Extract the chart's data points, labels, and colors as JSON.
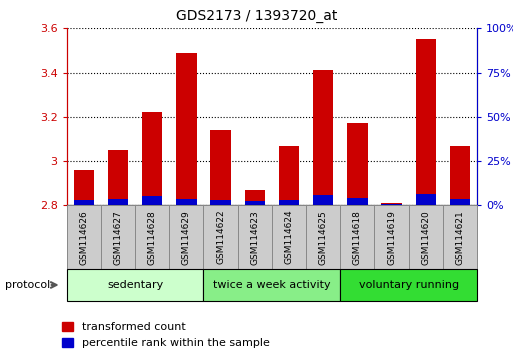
{
  "title": "GDS2173 / 1393720_at",
  "categories": [
    "GSM114626",
    "GSM114627",
    "GSM114628",
    "GSM114629",
    "GSM114622",
    "GSM114623",
    "GSM114624",
    "GSM114625",
    "GSM114618",
    "GSM114619",
    "GSM114620",
    "GSM114621"
  ],
  "red_values": [
    2.96,
    3.05,
    3.22,
    3.49,
    3.14,
    2.87,
    3.07,
    3.41,
    3.17,
    2.81,
    3.55,
    3.07
  ],
  "blue_values": [
    0.025,
    0.03,
    0.04,
    0.03,
    0.025,
    0.018,
    0.022,
    0.045,
    0.035,
    0.008,
    0.05,
    0.03
  ],
  "y_min": 2.8,
  "y_max": 3.6,
  "y_ticks": [
    2.8,
    3.0,
    3.2,
    3.4,
    3.6
  ],
  "right_y_ticks_pct": [
    0,
    25,
    50,
    75,
    100
  ],
  "right_y_labels": [
    "0%",
    "25%",
    "50%",
    "75%",
    "100%"
  ],
  "groups": [
    {
      "label": "sedentary",
      "indices": [
        0,
        1,
        2,
        3
      ],
      "color": "#ccffcc"
    },
    {
      "label": "twice a week activity",
      "indices": [
        4,
        5,
        6,
        7
      ],
      "color": "#88ee88"
    },
    {
      "label": "voluntary running",
      "indices": [
        8,
        9,
        10,
        11
      ],
      "color": "#33dd33"
    }
  ],
  "protocol_label": "protocol",
  "bar_width": 0.6,
  "red_color": "#cc0000",
  "blue_color": "#0000cc",
  "tick_color_left": "#cc0000",
  "tick_color_right": "#0000cc",
  "legend_red": "transformed count",
  "legend_blue": "percentile rank within the sample",
  "cell_bg": "#cccccc",
  "cell_edge": "#888888"
}
